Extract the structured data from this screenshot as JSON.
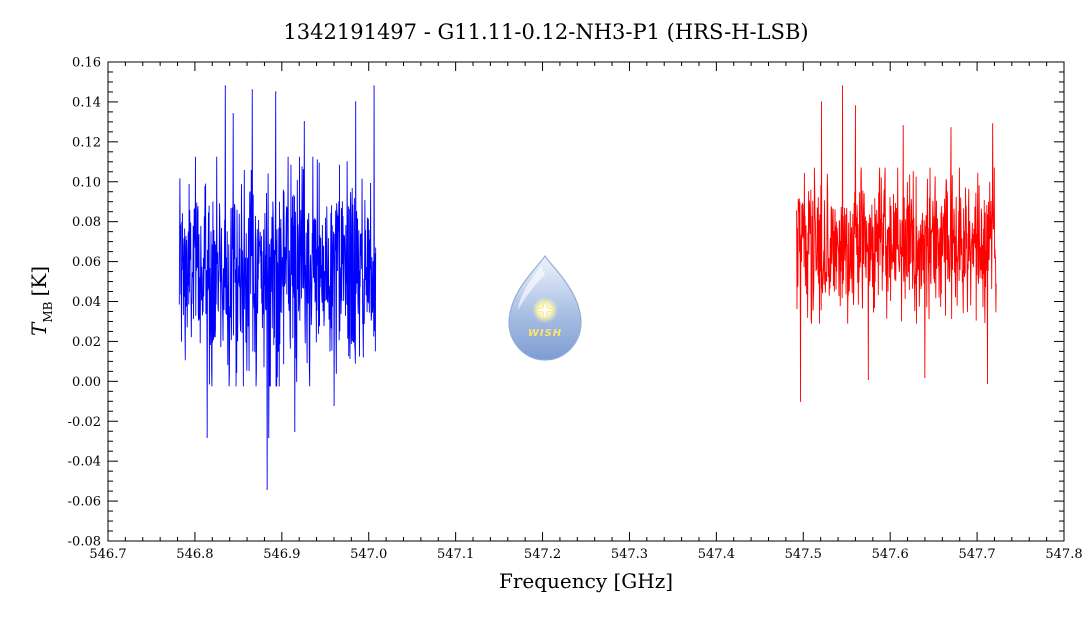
{
  "chart_data": {
    "type": "line",
    "title": "1342191497 - G11.11-0.12-NH3-P1 (HRS-H-LSB)",
    "xlabel": "Frequency [GHz]",
    "ylabel_main": "T",
    "ylabel_sub": "MB",
    "ylabel_unit": "[K]",
    "xlim": [
      546.7,
      547.8
    ],
    "ylim": [
      -0.08,
      0.16
    ],
    "xticks": [
      "546.7",
      "546.8",
      "546.9",
      "547.0",
      "547.1",
      "547.2",
      "547.3",
      "547.4",
      "547.5",
      "547.6",
      "547.7",
      "547.8"
    ],
    "yticks": [
      "-0.08",
      "-0.06",
      "-0.04",
      "-0.02",
      "0.00",
      "0.02",
      "0.04",
      "0.06",
      "0.08",
      "0.10",
      "0.12",
      "0.14",
      "0.16"
    ],
    "grid": false,
    "series": [
      {
        "color": "#0000ff",
        "x_range": [
          546.782,
          547.008
        ],
        "mean": 0.055,
        "noise_sigma": 0.025,
        "x": [
          546.814,
          546.835,
          546.844,
          546.866,
          546.883,
          546.885,
          546.893,
          546.915,
          546.926,
          546.96,
          546.985,
          547.006
        ],
        "y": [
          -0.028,
          0.148,
          0.134,
          0.146,
          -0.054,
          -0.028,
          0.145,
          -0.025,
          0.13,
          -0.012,
          0.14,
          0.148
        ]
      },
      {
        "color": "#ff0000",
        "x_range": [
          547.492,
          547.722
        ],
        "mean": 0.068,
        "noise_sigma": 0.017,
        "x": [
          547.497,
          547.521,
          547.545,
          547.56,
          547.575,
          547.615,
          547.64,
          547.67,
          547.712,
          547.718
        ],
        "y": [
          -0.01,
          0.14,
          0.148,
          0.138,
          0.001,
          0.128,
          0.002,
          0.127,
          -0.001,
          0.129
        ]
      }
    ],
    "logo": {
      "text": "WISH"
    }
  }
}
